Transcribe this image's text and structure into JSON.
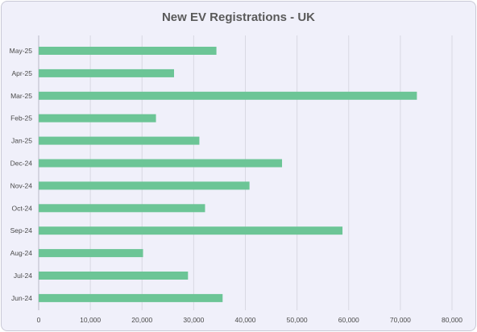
{
  "chart_data": {
    "type": "bar",
    "orientation": "horizontal",
    "title": "New EV Registrations - UK",
    "xlabel": "",
    "ylabel": "",
    "categories": [
      "May-25",
      "Apr-25",
      "Mar-25",
      "Feb-25",
      "Jan-25",
      "Dec-24",
      "Nov-24",
      "Oct-24",
      "Sep-24",
      "Aug-24",
      "Jul-24",
      "Jun-24"
    ],
    "values": [
      34400,
      26200,
      73200,
      22700,
      31100,
      47100,
      40800,
      32200,
      58800,
      20200,
      28900,
      35600
    ],
    "xlim": [
      0,
      80000
    ],
    "xticks": [
      "0",
      "10,000",
      "20,000",
      "30,000",
      "40,000",
      "50,000",
      "60,000",
      "70,000",
      "80,000"
    ],
    "grid": "vertical",
    "legend": "none",
    "bar_color": "#6cc596",
    "background_color": "#f0f0fa"
  }
}
